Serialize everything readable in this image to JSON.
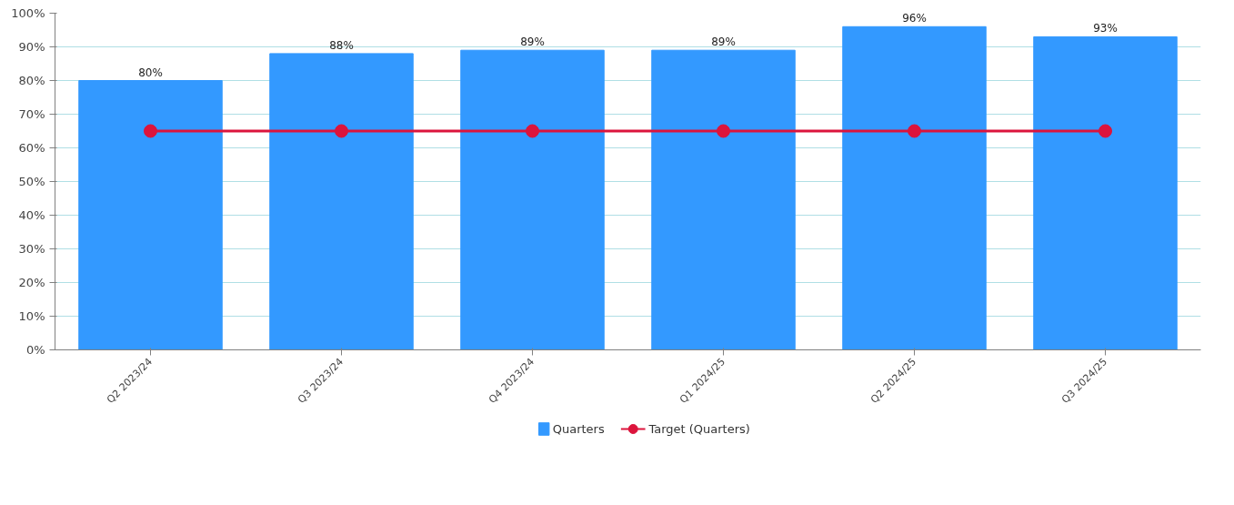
{
  "chart_data": {
    "type": "bar",
    "categories": [
      "Q2 2023/24",
      "Q3 2023/24",
      "Q4 2023/24",
      "Q1 2024/25",
      "Q2 2024/25",
      "Q3 2024/25"
    ],
    "series": [
      {
        "name": "Quarters",
        "color": "#3399ff",
        "values": [
          80,
          88,
          89,
          89,
          96,
          93
        ],
        "value_labels": [
          "80%",
          "88%",
          "89%",
          "89%",
          "96%",
          "93%"
        ]
      },
      {
        "name": "Target (Quarters)",
        "type": "line",
        "color": "#dc143c",
        "marker": "circle",
        "values": [
          65,
          65,
          65,
          65,
          65,
          65
        ]
      }
    ],
    "ylim": [
      0,
      100
    ],
    "yticks": [
      {
        "value": 0,
        "label": "0%"
      },
      {
        "value": 10,
        "label": "10%"
      },
      {
        "value": 20,
        "label": "20%"
      },
      {
        "value": 30,
        "label": "30%"
      },
      {
        "value": 40,
        "label": "40%"
      },
      {
        "value": 50,
        "label": "50%"
      },
      {
        "value": 60,
        "label": "60%"
      },
      {
        "value": 70,
        "label": "70%"
      },
      {
        "value": 80,
        "label": "80%"
      },
      {
        "value": 90,
        "label": "90%"
      },
      {
        "value": 100,
        "label": "100%"
      }
    ],
    "grid": "y",
    "legend": "bottom"
  }
}
